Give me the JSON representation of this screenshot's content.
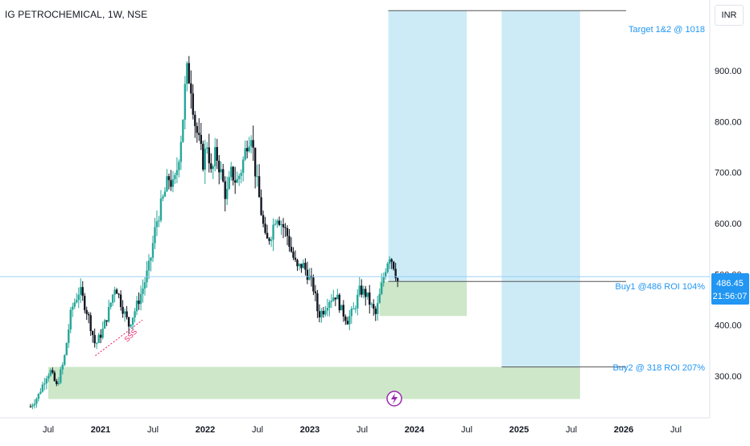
{
  "header": {
    "symbol_title": "IG PETROCHEMICAL, 1W, NSE",
    "currency_button": "INR"
  },
  "colors": {
    "up": "#26a69a",
    "down": "#131722",
    "target_zone": "#cdebf7",
    "buy_zone": "#cde7c8",
    "price_tag": "#2196f3",
    "label_text": "#2196f3",
    "sss_text": "#e91e63",
    "lightning": "#9c27b0"
  },
  "chart_data": {
    "type": "candlestick",
    "title": "IG PETROCHEMICAL, 1W, NSE",
    "xaxis_ticks": [
      "Jul",
      "2021",
      "Jul",
      "2022",
      "Jul",
      "2023",
      "Jul",
      "2024",
      "Jul",
      "2025",
      "Jul",
      "2026",
      "Jul"
    ],
    "yaxis_ticks": [
      "300.00",
      "400.00",
      "500.00",
      "600.00",
      "700.00",
      "800.00",
      "900.00"
    ],
    "ylim": [
      230,
      1035
    ],
    "current_price": "486.45",
    "countdown": "21:56:07",
    "annotations": {
      "target": "Target 1&2 @ 1018",
      "buy1": "Buy1 @486 ROI 104%",
      "buy2": "Buy2 @ 318 ROI 207%",
      "sss": "SSS"
    },
    "levels": {
      "target": 1018,
      "buy1": 486,
      "buy2": 318
    },
    "zones": [
      {
        "name": "target-zone-1",
        "x_from": "2023-10",
        "x_to": "2024-07",
        "y_from": 486,
        "y_to": 1018
      },
      {
        "name": "target-zone-2",
        "x_from": "2024-11",
        "x_to": "2025-08",
        "y_from": 318,
        "y_to": 1018
      },
      {
        "name": "buy-zone-1",
        "x_from": "2023-09",
        "x_to": "2024-07",
        "y_from": 418,
        "y_to": 486
      },
      {
        "name": "buy-zone-2",
        "x_from": "2020-07",
        "x_to": "2025-08",
        "y_from": 255,
        "y_to": 318
      }
    ],
    "price_path": [
      [
        2020.33,
        240
      ],
      [
        2020.4,
        260
      ],
      [
        2020.48,
        300
      ],
      [
        2020.52,
        310
      ],
      [
        2020.58,
        280
      ],
      [
        2020.65,
        330
      ],
      [
        2020.72,
        430
      ],
      [
        2020.8,
        470
      ],
      [
        2020.88,
        420
      ],
      [
        2020.95,
        360
      ],
      [
        2021.02,
        390
      ],
      [
        2021.08,
        430
      ],
      [
        2021.14,
        480
      ],
      [
        2021.2,
        440
      ],
      [
        2021.27,
        400
      ],
      [
        2021.33,
        430
      ],
      [
        2021.4,
        470
      ],
      [
        2021.47,
        520
      ],
      [
        2021.53,
        600
      ],
      [
        2021.6,
        650
      ],
      [
        2021.65,
        690
      ],
      [
        2021.7,
        670
      ],
      [
        2021.74,
        720
      ],
      [
        2021.78,
        790
      ],
      [
        2021.82,
        900
      ],
      [
        2021.86,
        880
      ],
      [
        2021.9,
        800
      ],
      [
        2021.94,
        760
      ],
      [
        2021.98,
        720
      ],
      [
        2022.02,
        760
      ],
      [
        2022.06,
        690
      ],
      [
        2022.1,
        740
      ],
      [
        2022.15,
        700
      ],
      [
        2022.2,
        650
      ],
      [
        2022.25,
        700
      ],
      [
        2022.3,
        680
      ],
      [
        2022.35,
        710
      ],
      [
        2022.4,
        760
      ],
      [
        2022.44,
        780
      ],
      [
        2022.48,
        700
      ],
      [
        2022.53,
        630
      ],
      [
        2022.58,
        560
      ],
      [
        2022.63,
        580
      ],
      [
        2022.68,
        620
      ],
      [
        2022.73,
        600
      ],
      [
        2022.78,
        580
      ],
      [
        2022.83,
        540
      ],
      [
        2022.88,
        510
      ],
      [
        2022.93,
        520
      ],
      [
        2022.98,
        500
      ],
      [
        2023.04,
        470
      ],
      [
        2023.08,
        420
      ],
      [
        2023.13,
        430
      ],
      [
        2023.18,
        450
      ],
      [
        2023.25,
        460
      ],
      [
        2023.3,
        430
      ],
      [
        2023.36,
        410
      ],
      [
        2023.42,
        430
      ],
      [
        2023.48,
        470
      ],
      [
        2023.54,
        460
      ],
      [
        2023.58,
        440
      ],
      [
        2023.63,
        420
      ],
      [
        2023.67,
        460
      ],
      [
        2023.72,
        510
      ],
      [
        2023.76,
        540
      ],
      [
        2023.8,
        520
      ],
      [
        2023.84,
        486
      ]
    ]
  }
}
